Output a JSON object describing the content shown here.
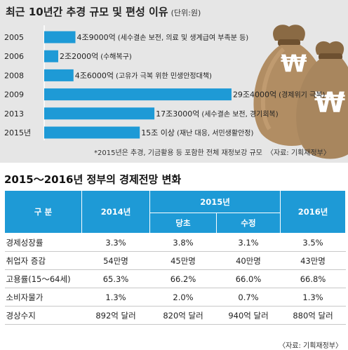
{
  "chart_data": {
    "type": "bar",
    "orientation": "horizontal",
    "title": "최근 10년간 추경 규모 및 편성 이유",
    "unit": "(단위:원)",
    "categories": [
      "2005",
      "2006",
      "2008",
      "2009",
      "2013",
      "2015년"
    ],
    "values": [
      4.9,
      2.2,
      4.6,
      29.4,
      17.3,
      15
    ],
    "series": [
      {
        "values": [
          4.9,
          2.2,
          4.6,
          29.4,
          17.3,
          15
        ],
        "labels": [
          "4조9000억",
          "2조2000억",
          "4조6000억",
          "29조4000억",
          "17조3000억",
          "15조 이상"
        ],
        "reasons": [
          "(세수결손 보전, 의료 및 생계급여 부족분 등)",
          "(수해복구)",
          "(고유가 극복 위한 민생안정대책)",
          "(경제위기 극복)",
          "(세수결손 보전, 경기회복)",
          "(재난 대응, 서민생활안정)"
        ]
      }
    ],
    "color": "#1e9ad6",
    "footnote": "*2015년은 추경, 기금활용 등 포함한 전체 재정보강 규모",
    "source": "〈자료: 기획재정부〉"
  },
  "section2": {
    "title": "2015～2016년 정부의 경제전망 변화",
    "header": {
      "category": "구  분",
      "y2014": "2014년",
      "y2015": "2015년",
      "initial": "당초",
      "revised": "수정",
      "y2016": "2016년"
    },
    "rows": [
      {
        "label": "경제성장률",
        "c2014": "3.3%",
        "initial": "3.8%",
        "revised": "3.1%",
        "c2016": "3.5%"
      },
      {
        "label": "취업자 증감",
        "c2014": "54만명",
        "initial": "45만명",
        "revised": "40만명",
        "c2016": "43만명"
      },
      {
        "label": "고용률(15～64세)",
        "c2014": "65.3%",
        "initial": "66.2%",
        "revised": "66.0%",
        "c2016": "66.8%"
      },
      {
        "label": "소비자물가",
        "c2014": "1.3%",
        "initial": "2.0%",
        "revised": "0.7%",
        "c2016": "1.3%"
      },
      {
        "label": "경상수지",
        "c2014": "892억 달러",
        "initial": "820억 달러",
        "revised": "940억 달러",
        "c2016": "880억 달러"
      }
    ],
    "source": "〈자료: 기획재정부〉"
  },
  "colors": {
    "accent": "#1e9ad6",
    "panel": "#e6e6e6",
    "moneybag": "#a8865e"
  }
}
